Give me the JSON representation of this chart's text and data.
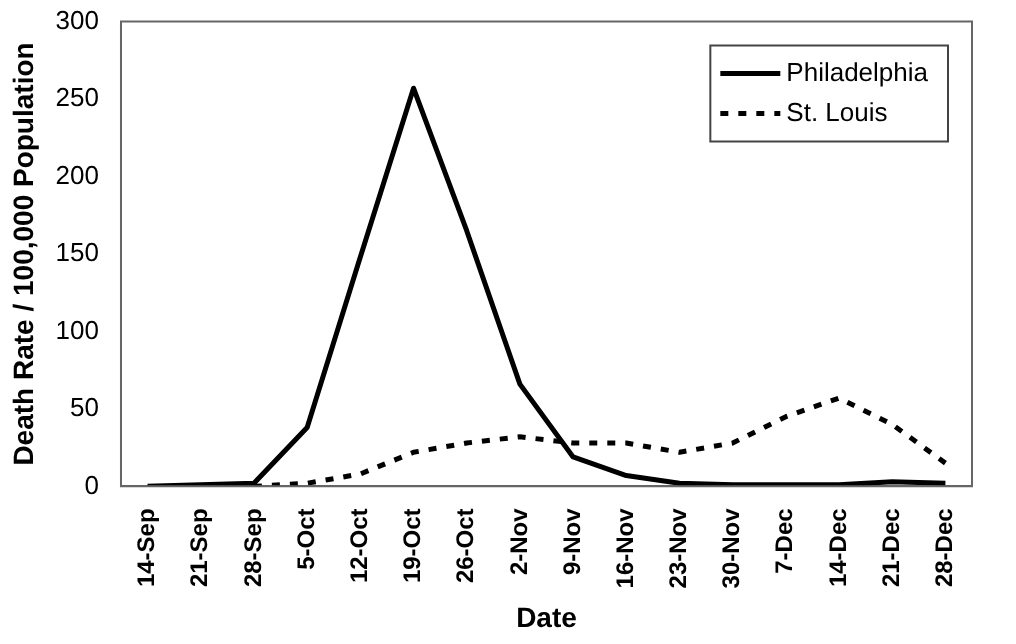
{
  "chart_data": {
    "type": "line",
    "xlabel": "Date",
    "ylabel": "Death Rate / 100,000 Population",
    "categories": [
      "14-Sep",
      "21-Sep",
      "28-Sep",
      "5-Oct",
      "12-Oct",
      "19-Oct",
      "26-Oct",
      "2-Nov",
      "9-Nov",
      "16-Nov",
      "23-Nov",
      "30-Nov",
      "7-Dec",
      "14-Dec",
      "21-Dec",
      "28-Dec"
    ],
    "series": [
      {
        "name": "Philadelphia",
        "color": "#000000",
        "line_style": "solid",
        "values": [
          0,
          1,
          2,
          38,
          148,
          257,
          165,
          66,
          19,
          7,
          2,
          1,
          1,
          1,
          3,
          2
        ]
      },
      {
        "name": "St. Louis",
        "color": "#000000",
        "line_style": "dotted",
        "values": [
          null,
          null,
          0,
          2,
          8,
          22,
          28,
          32,
          28,
          28,
          22,
          28,
          45,
          57,
          40,
          15
        ]
      }
    ],
    "ylim": [
      0,
      300
    ],
    "yticks": [
      0,
      50,
      100,
      150,
      200,
      250,
      300
    ],
    "grid": false,
    "legend": "top right",
    "marker": "none"
  }
}
